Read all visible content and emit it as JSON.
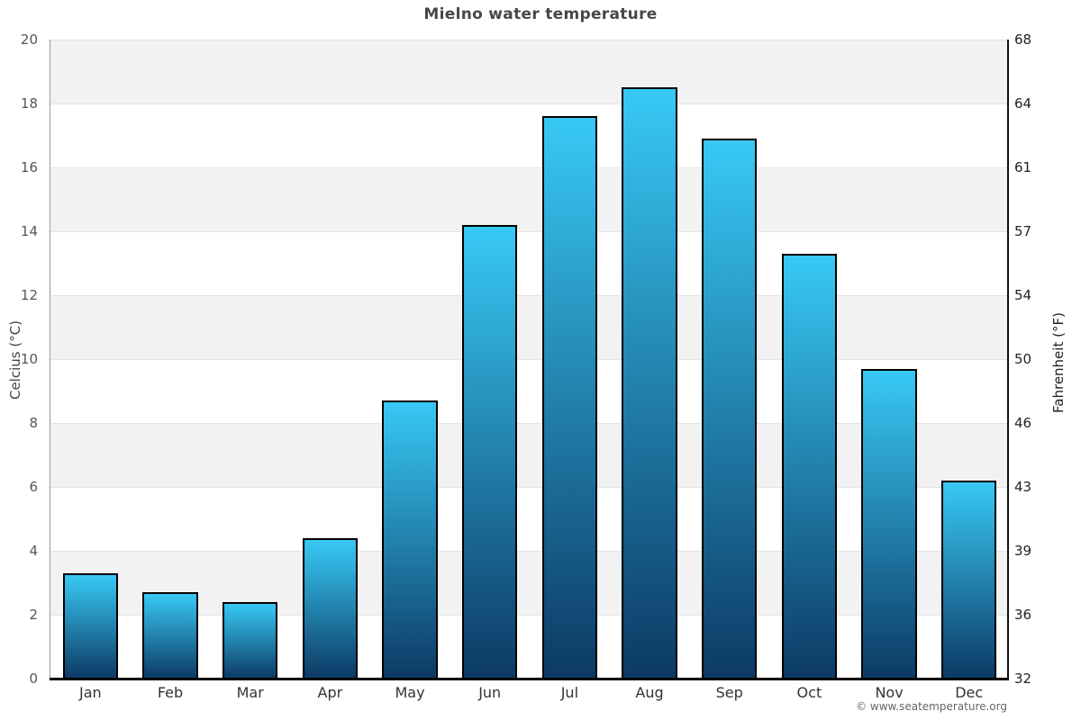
{
  "chart_data": {
    "type": "bar",
    "title": "Mielno water temperature",
    "categories": [
      "Jan",
      "Feb",
      "Mar",
      "Apr",
      "May",
      "Jun",
      "Jul",
      "Aug",
      "Sep",
      "Oct",
      "Nov",
      "Dec"
    ],
    "values": [
      3.3,
      2.7,
      2.4,
      4.4,
      8.7,
      14.2,
      17.6,
      18.5,
      16.9,
      13.3,
      9.7,
      6.2
    ],
    "ylabel_left": "Celcius (°C)",
    "ylabel_right": "Fahrenheit (°F)",
    "xlabel": "",
    "ylim": [
      0,
      20
    ],
    "yticks_left": [
      "20",
      "18",
      "16",
      "14",
      "12",
      "10",
      "8",
      "6",
      "4",
      "2",
      "0"
    ],
    "yticks_right": [
      "68",
      "64",
      "61",
      "57",
      "54",
      "50",
      "46",
      "43",
      "39",
      "36",
      "32"
    ],
    "grid": "horizontal alternating bands every 2°C",
    "legend": "none",
    "bar_color_top": "#38c9f5",
    "bar_color_bottom": "#0c3a64",
    "band_color": "#f2f2f2"
  },
  "footer": {
    "watermark": "© www.seatemperature.org"
  }
}
